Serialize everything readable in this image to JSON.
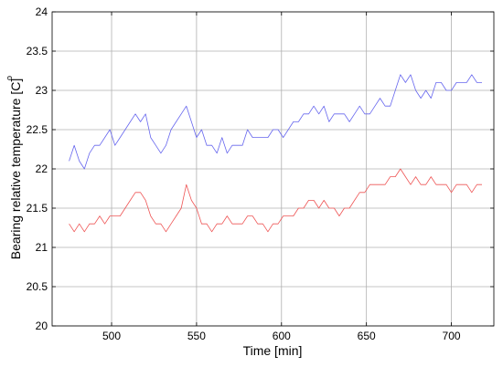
{
  "chart_data": {
    "type": "line",
    "title": "",
    "xlabel": "Time [min]",
    "ylabel": "Bearing relative temperature [C]",
    "ylabel_degree": "o",
    "xlim": [
      465,
      725
    ],
    "ylim": [
      20,
      24
    ],
    "xticks": [
      500,
      550,
      600,
      650,
      700
    ],
    "yticks": [
      20,
      20.5,
      21,
      21.5,
      22,
      22.5,
      23,
      23.5,
      24
    ],
    "grid": true,
    "legend": "none",
    "series": [
      {
        "color": "#6666ee",
        "x": [
          475,
          478,
          481,
          484,
          487,
          490,
          493,
          496,
          499,
          502,
          505,
          508,
          511,
          514,
          517,
          520,
          523,
          526,
          529,
          532,
          535,
          538,
          541,
          544,
          547,
          550,
          553,
          556,
          559,
          562,
          565,
          568,
          571,
          574,
          577,
          580,
          583,
          586,
          589,
          592,
          595,
          598,
          601,
          604,
          607,
          610,
          613,
          616,
          619,
          622,
          625,
          628,
          631,
          634,
          637,
          640,
          643,
          646,
          649,
          652,
          655,
          658,
          661,
          664,
          667,
          670,
          673,
          676,
          679,
          682,
          685,
          688,
          691,
          694,
          697,
          700,
          703,
          706,
          709,
          712,
          715,
          718
        ],
        "y": [
          22.1,
          22.3,
          22.1,
          22.0,
          22.2,
          22.3,
          22.3,
          22.4,
          22.5,
          22.3,
          22.4,
          22.5,
          22.6,
          22.7,
          22.6,
          22.7,
          22.4,
          22.3,
          22.2,
          22.3,
          22.5,
          22.6,
          22.7,
          22.8,
          22.6,
          22.4,
          22.5,
          22.3,
          22.3,
          22.2,
          22.4,
          22.2,
          22.3,
          22.3,
          22.3,
          22.5,
          22.4,
          22.4,
          22.4,
          22.4,
          22.5,
          22.5,
          22.4,
          22.5,
          22.6,
          22.6,
          22.7,
          22.7,
          22.8,
          22.7,
          22.8,
          22.6,
          22.7,
          22.7,
          22.7,
          22.6,
          22.7,
          22.8,
          22.7,
          22.7,
          22.8,
          22.9,
          22.8,
          22.8,
          23.0,
          23.2,
          23.1,
          23.2,
          23.0,
          22.9,
          23.0,
          22.9,
          23.1,
          23.1,
          23.0,
          23.0,
          23.1,
          23.1,
          23.1,
          23.2,
          23.1,
          23.1
        ]
      },
      {
        "color": "#ee5555",
        "x": [
          475,
          478,
          481,
          484,
          487,
          490,
          493,
          496,
          499,
          502,
          505,
          508,
          511,
          514,
          517,
          520,
          523,
          526,
          529,
          532,
          535,
          538,
          541,
          544,
          547,
          550,
          553,
          556,
          559,
          562,
          565,
          568,
          571,
          574,
          577,
          580,
          583,
          586,
          589,
          592,
          595,
          598,
          601,
          604,
          607,
          610,
          613,
          616,
          619,
          622,
          625,
          628,
          631,
          634,
          637,
          640,
          643,
          646,
          649,
          652,
          655,
          658,
          661,
          664,
          667,
          670,
          673,
          676,
          679,
          682,
          685,
          688,
          691,
          694,
          697,
          700,
          703,
          706,
          709,
          712,
          715,
          718
        ],
        "y": [
          21.3,
          21.2,
          21.3,
          21.2,
          21.3,
          21.3,
          21.4,
          21.3,
          21.4,
          21.4,
          21.4,
          21.5,
          21.6,
          21.7,
          21.7,
          21.6,
          21.4,
          21.3,
          21.3,
          21.2,
          21.3,
          21.4,
          21.5,
          21.8,
          21.6,
          21.5,
          21.3,
          21.3,
          21.2,
          21.3,
          21.3,
          21.4,
          21.3,
          21.3,
          21.3,
          21.4,
          21.4,
          21.3,
          21.3,
          21.2,
          21.3,
          21.3,
          21.4,
          21.4,
          21.4,
          21.5,
          21.5,
          21.6,
          21.6,
          21.5,
          21.6,
          21.5,
          21.5,
          21.4,
          21.5,
          21.5,
          21.6,
          21.7,
          21.7,
          21.8,
          21.8,
          21.8,
          21.8,
          21.9,
          21.9,
          22.0,
          21.9,
          21.8,
          21.9,
          21.8,
          21.8,
          21.9,
          21.8,
          21.8,
          21.8,
          21.7,
          21.8,
          21.8,
          21.8,
          21.7,
          21.8,
          21.8
        ]
      }
    ]
  }
}
